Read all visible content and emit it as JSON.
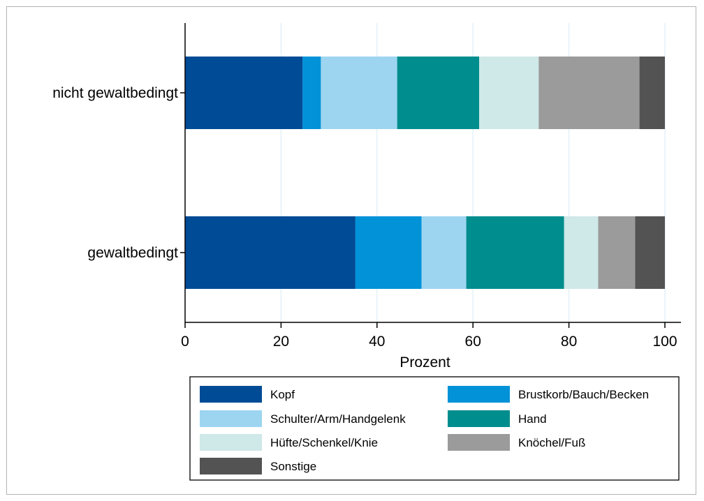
{
  "chart_data": {
    "type": "bar",
    "orientation": "horizontal",
    "stacked": true,
    "categories": [
      "nicht gewaltbedingt",
      "gewaltbedingt"
    ],
    "series": [
      {
        "name": "Kopf",
        "color": "#004b95",
        "values": [
          24.5,
          35.5
        ]
      },
      {
        "name": "Brustkorb/Bauch/Becken",
        "color": "#0192d8",
        "values": [
          3.8,
          13.8
        ]
      },
      {
        "name": "Schulter/Arm/Handgelenk",
        "color": "#9dd5f1",
        "values": [
          15.9,
          9.3
        ]
      },
      {
        "name": "Hand",
        "color": "#008d8d",
        "values": [
          17.1,
          20.4
        ]
      },
      {
        "name": "Hüfte/Schenkel/Knie",
        "color": "#cfe8e8",
        "values": [
          12.4,
          7.1
        ]
      },
      {
        "name": "Knöchel/Fuß",
        "color": "#9b9b9b",
        "values": [
          21.0,
          7.7
        ]
      },
      {
        "name": "Sonstige",
        "color": "#535353",
        "values": [
          5.3,
          6.2
        ]
      }
    ],
    "xlabel": "Prozent",
    "ylabel": "",
    "xlim": [
      0,
      100
    ],
    "xticks": [
      0,
      20,
      40,
      60,
      80,
      100
    ],
    "grid": "vertical",
    "legend_position": "bottom"
  }
}
